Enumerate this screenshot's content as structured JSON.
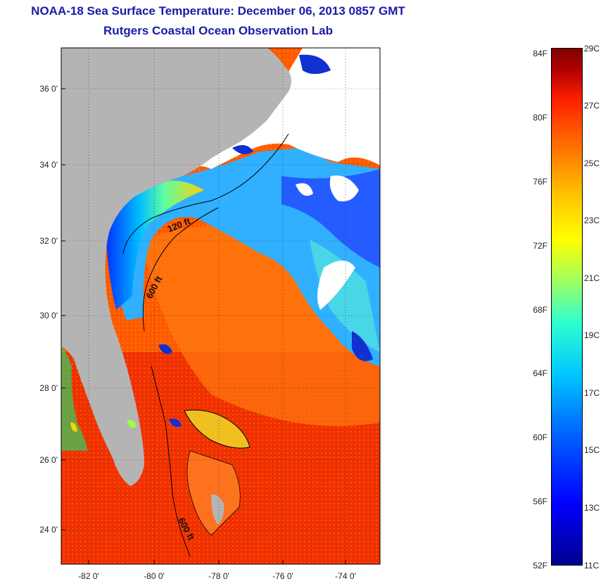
{
  "title": {
    "line1": "NOAA-18 Sea Surface Temperature:  December 06, 2013 0857 GMT",
    "line2": "Rutgers Coastal Ocean Observation Lab"
  },
  "map": {
    "lat_labels": [
      "36 0'",
      "34 0'",
      "32 0'",
      "30 0'",
      "28 0'",
      "26 0'",
      "24 0'"
    ],
    "lon_labels": [
      "-82 0'",
      "-80 0'",
      "-78 0'",
      "-76 0'",
      "-74 0'"
    ],
    "contour_labels": [
      "120 ft",
      "600 ft",
      "600 ft"
    ],
    "colors": {
      "land": "#b4b4b4",
      "cloud": "#ffffff"
    }
  },
  "colorbar": {
    "fahrenheit": [
      "84F",
      "80F",
      "76F",
      "72F",
      "68F",
      "64F",
      "60F",
      "56F",
      "52F"
    ],
    "celsius": [
      "29C",
      "27C",
      "25C",
      "23C",
      "21C",
      "19C",
      "17C",
      "15C",
      "13C",
      "11C"
    ],
    "range_f": [
      52,
      84
    ],
    "range_c": [
      11,
      29
    ]
  }
}
